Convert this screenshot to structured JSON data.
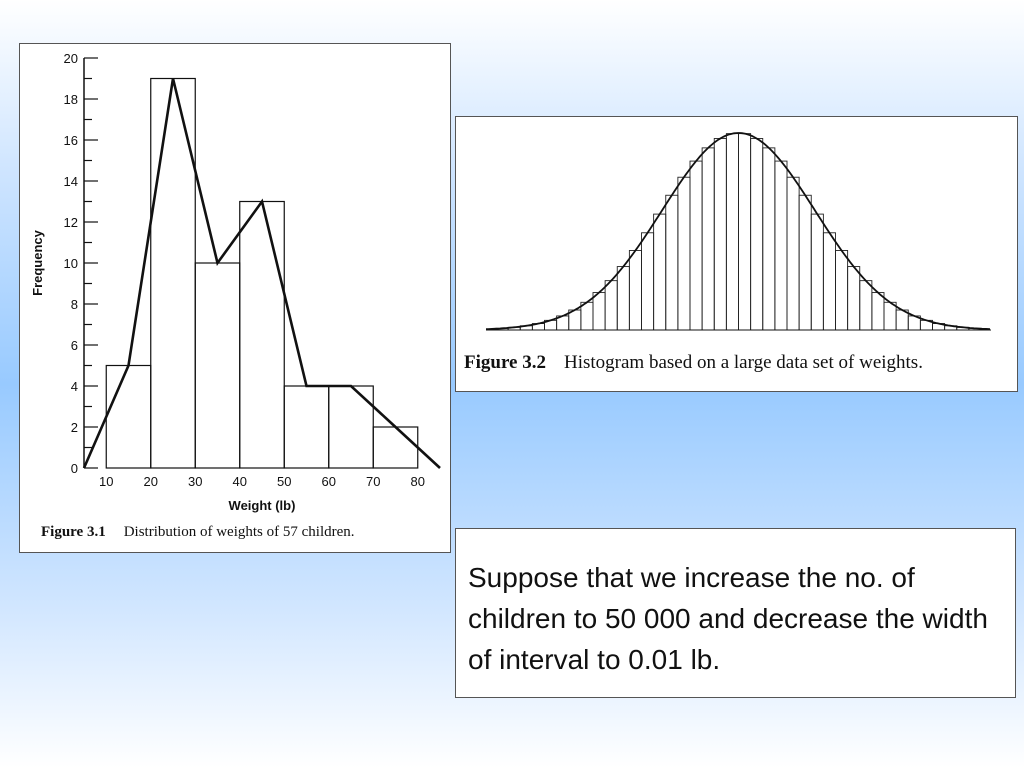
{
  "figure1": {
    "caption_number": "Figure 3.1",
    "caption_text": "Distribution of weights of 57 children.",
    "chart_data": {
      "type": "bar",
      "title": "",
      "xlabel": "Weight (lb)",
      "ylabel": "Frequency",
      "bins": [
        [
          10,
          20
        ],
        [
          20,
          30
        ],
        [
          30,
          40
        ],
        [
          40,
          50
        ],
        [
          50,
          60
        ],
        [
          60,
          70
        ],
        [
          70,
          80
        ]
      ],
      "values": [
        5,
        19,
        10,
        13,
        4,
        4,
        2
      ],
      "polygon": {
        "x": [
          5,
          15,
          25,
          35,
          45,
          55,
          65,
          75,
          85
        ],
        "y": [
          0,
          5,
          19,
          10,
          13,
          4,
          4,
          2,
          0
        ]
      },
      "xticks": [
        "10",
        "20",
        "30",
        "40",
        "50",
        "60",
        "70",
        "80"
      ],
      "yticks": [
        "0",
        "2",
        "4",
        "6",
        "8",
        "10",
        "12",
        "14",
        "16",
        "18",
        "20"
      ],
      "xlim": [
        5,
        85
      ],
      "ylim": [
        0,
        20
      ]
    }
  },
  "figure2": {
    "caption_number": "Figure 3.2",
    "caption_text": "Histogram based on a large data set of weights.",
    "chart_data": {
      "type": "bar",
      "description_series": "narrow-bin histogram with bell-shaped frequency curve",
      "bin_count": 40,
      "curve": "normal"
    }
  },
  "note": {
    "text": "Suppose that we increase the no. of children to 50 000 and decrease the width of interval to 0.01 lb."
  },
  "colors": {
    "ink": "#111111",
    "panel_border": "#555555",
    "background_mid": "#98caff"
  }
}
